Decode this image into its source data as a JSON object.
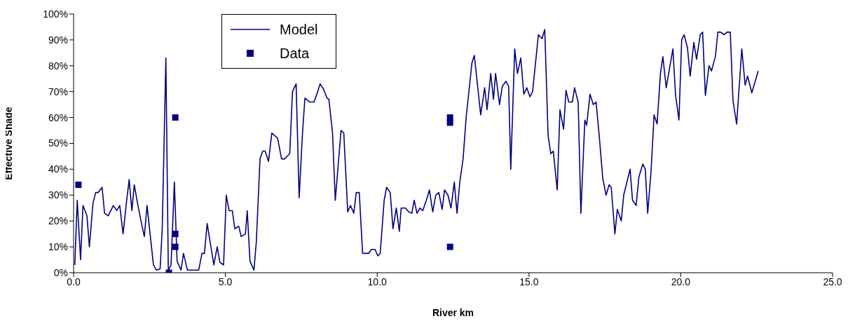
{
  "chart_data": {
    "type": "line",
    "xlabel": "River km",
    "ylabel": "Effective Shade",
    "xlim": [
      0,
      25
    ],
    "xticks": [
      {
        "value": 0,
        "label": "0.0"
      },
      {
        "value": 5,
        "label": "5.0"
      },
      {
        "value": 10,
        "label": "10.0"
      },
      {
        "value": 15,
        "label": "15.0"
      },
      {
        "value": 20,
        "label": "20.0"
      },
      {
        "value": 25,
        "label": "25.0"
      }
    ],
    "ylim": [
      0,
      100
    ],
    "yticks": [
      {
        "value": 0,
        "label": "0%"
      },
      {
        "value": 10,
        "label": "10%"
      },
      {
        "value": 20,
        "label": "20%"
      },
      {
        "value": 30,
        "label": "30%"
      },
      {
        "value": 40,
        "label": "40%"
      },
      {
        "value": 50,
        "label": "50%"
      },
      {
        "value": 60,
        "label": "60%"
      },
      {
        "value": 70,
        "label": "70%"
      },
      {
        "value": 80,
        "label": "80%"
      },
      {
        "value": 90,
        "label": "90%"
      },
      {
        "value": 100,
        "label": "100%"
      }
    ],
    "grid": false,
    "legend": "top left",
    "series": [
      {
        "name": "Model",
        "color": "#000080",
        "marker": "none",
        "x": [
          0.04,
          0.12,
          0.23,
          0.31,
          0.44,
          0.52,
          0.64,
          0.73,
          0.81,
          0.94,
          1.02,
          1.14,
          1.31,
          1.42,
          1.52,
          1.63,
          1.73,
          1.83,
          1.92,
          2.0,
          2.12,
          2.22,
          2.33,
          2.42,
          2.52,
          2.63,
          2.73,
          2.85,
          2.92,
          3.04,
          3.12,
          3.21,
          3.32,
          3.41,
          3.54,
          3.62,
          3.75,
          4.12,
          4.23,
          4.31,
          4.4,
          4.62,
          4.73,
          4.82,
          4.94,
          5.03,
          5.12,
          5.23,
          5.31,
          5.44,
          5.52,
          5.66,
          5.72,
          5.81,
          5.94,
          6.02,
          6.14,
          6.23,
          6.31,
          6.42,
          6.53,
          6.72,
          6.85,
          6.95,
          7.12,
          7.21,
          7.33,
          7.43,
          7.54,
          7.62,
          7.77,
          7.92,
          8.04,
          8.12,
          8.23,
          8.35,
          8.41,
          8.53,
          8.62,
          8.81,
          8.9,
          9.03,
          9.12,
          9.23,
          9.31,
          9.41,
          9.52,
          9.72,
          9.81,
          9.93,
          10.02,
          10.1,
          10.23,
          10.31,
          10.43,
          10.52,
          10.63,
          10.73,
          10.79,
          10.93,
          11.04,
          11.14,
          11.22,
          11.31,
          11.41,
          11.5,
          11.62,
          11.72,
          11.83,
          11.93,
          12.03,
          12.14,
          12.22,
          12.33,
          12.43,
          12.54,
          12.63,
          12.72,
          12.83,
          12.93,
          13.03,
          13.12,
          13.2,
          13.41,
          13.54,
          13.62,
          13.74,
          13.83,
          13.9,
          14.03,
          14.12,
          14.24,
          14.33,
          14.4,
          14.53,
          14.62,
          14.73,
          14.83,
          14.93,
          15.03,
          15.12,
          15.31,
          15.43,
          15.52,
          15.63,
          15.72,
          15.8,
          15.93,
          16.02,
          16.14,
          16.22,
          16.31,
          16.43,
          16.5,
          16.62,
          16.71,
          16.84,
          16.9,
          17.01,
          17.12,
          17.21,
          17.31,
          17.43,
          17.54,
          17.64,
          17.71,
          17.83,
          17.91,
          18.04,
          18.12,
          18.33,
          18.41,
          18.53,
          18.62,
          18.75,
          18.83,
          18.91,
          19.02,
          19.12,
          19.22,
          19.33,
          19.41,
          19.52,
          19.74,
          19.83,
          19.94,
          20.03,
          20.11,
          20.22,
          20.31,
          20.43,
          20.52,
          20.64,
          20.72,
          20.81,
          20.93,
          21.01,
          21.14,
          21.22,
          21.31,
          21.43,
          21.52,
          21.63,
          21.72,
          21.84,
          22.01,
          22.12,
          22.2,
          22.34,
          22.55
        ],
        "values": [
          3,
          28,
          5,
          26,
          22,
          10,
          27,
          31,
          31,
          33,
          23,
          22,
          26,
          24,
          26,
          15,
          26,
          36,
          24,
          34,
          26,
          20,
          14,
          26,
          15,
          3,
          1,
          1.5,
          17,
          83,
          1,
          3,
          35,
          4.5,
          1,
          7.5,
          1,
          1,
          7.5,
          7.5,
          19,
          3,
          10,
          4,
          3,
          30,
          24,
          24,
          17,
          18,
          14,
          15,
          24,
          4.5,
          1,
          12,
          44,
          47,
          47,
          43,
          54,
          52,
          44,
          44,
          46,
          70,
          73,
          29,
          54,
          67.5,
          66,
          66,
          70,
          73,
          71,
          67.5,
          67,
          54,
          28,
          55,
          54,
          23.5,
          26,
          23,
          31,
          31,
          7.5,
          7.5,
          9,
          9,
          6.5,
          7.5,
          28,
          33,
          31,
          17,
          25,
          16,
          25,
          25,
          23.5,
          23,
          28,
          23,
          25,
          24,
          28,
          32,
          23.5,
          30,
          31,
          24.5,
          32,
          30,
          25,
          35,
          23,
          35,
          44,
          60,
          71,
          81,
          84,
          61,
          71.5,
          63,
          77,
          67,
          77,
          65,
          72,
          74,
          72,
          40,
          86.5,
          77,
          83,
          69,
          71.5,
          68,
          70,
          92,
          90.5,
          94,
          53,
          46,
          47,
          32,
          63,
          55.5,
          70.5,
          66,
          66,
          71.5,
          66,
          23,
          59,
          57,
          69,
          65,
          66,
          53.5,
          36.5,
          30,
          34,
          33,
          15,
          24.5,
          20,
          30,
          40,
          28,
          26,
          37,
          42,
          40,
          23,
          39,
          61,
          57.5,
          77,
          83.5,
          71.5,
          86.5,
          68.5,
          59,
          90,
          92,
          87,
          76,
          89,
          82.5,
          92,
          93,
          68.5,
          80,
          78,
          83.5,
          93,
          93,
          92,
          93,
          93,
          66.5,
          57.5,
          86.5,
          72.5,
          76,
          69.5,
          78
        ]
      },
      {
        "name": "Data",
        "type": "scatter",
        "color": "#000080",
        "marker": "square",
        "x": [
          0.16,
          3.14,
          3.35,
          3.35,
          3.35,
          12.4,
          12.4,
          12.4
        ],
        "values": [
          34,
          0,
          60,
          15,
          10,
          60,
          58,
          10
        ]
      }
    ]
  }
}
